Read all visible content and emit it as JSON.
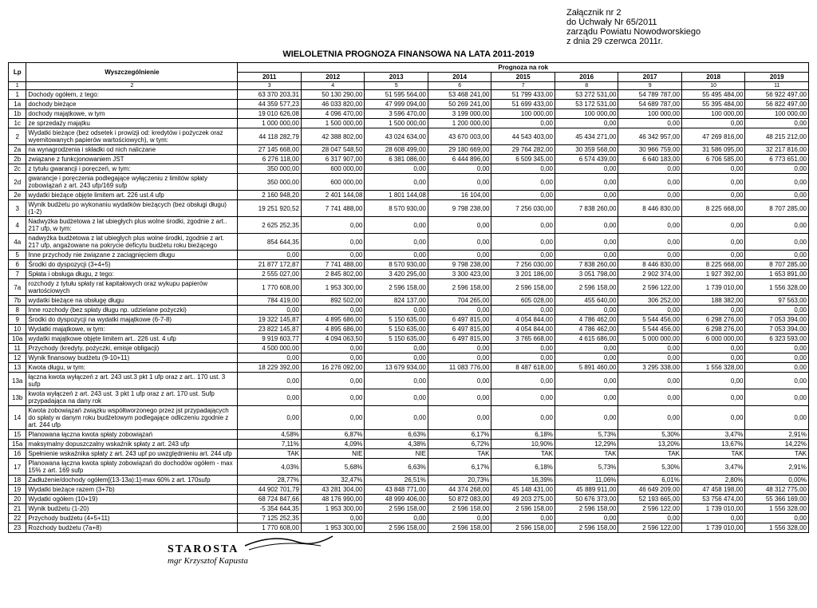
{
  "header": {
    "line1": "Załącznik nr 2",
    "line2": "do Uchwały Nr 65/2011",
    "line3": "zarządu Powiatu Nowodworskiego",
    "line4": "z dnia 29 czerwca 2011r."
  },
  "title": "WIELOLETNIA PROGNOZA FINANSOWA NA LATA 2011-2019",
  "col_headers": {
    "lp": "Lp",
    "desc": "Wyszczególnienie",
    "group": "Prognoza na rok",
    "years": [
      "2011",
      "2012",
      "2013",
      "2014",
      "2015",
      "2016",
      "2017",
      "2018",
      "2019"
    ],
    "nums": [
      "1",
      "2",
      "3",
      "4",
      "5",
      "6",
      "7",
      "8",
      "9",
      "10",
      "11"
    ]
  },
  "rows": [
    {
      "lp": "1",
      "desc": "Dochody ogółem, z tego:",
      "v": [
        "63 370 203,31",
        "50 130 290,00",
        "51 595 564,00",
        "53 468 241,00",
        "51 799 433,00",
        "53 272 531,00",
        "54 789 787,00",
        "55 495 484,00",
        "56 922 497,00"
      ]
    },
    {
      "lp": "1a",
      "desc": "dochody bieżące",
      "v": [
        "44 359 577,23",
        "46 033 820,00",
        "47 999 094,00",
        "50 269 241,00",
        "51 699 433,00",
        "53 172 531,00",
        "54 689 787,00",
        "55 395 484,00",
        "56 822 497,00"
      ]
    },
    {
      "lp": "1b",
      "desc": "dochody majątkowe, w tym",
      "v": [
        "19 010 626,08",
        "4 096 470,00",
        "3 596 470,00",
        "3 199 000,00",
        "100 000,00",
        "100 000,00",
        "100 000,00",
        "100 000,00",
        "100 000,00"
      ]
    },
    {
      "lp": "1c",
      "desc": "ze sprzedaży majątku",
      "v": [
        "1 000 000,00",
        "1 500 000,00",
        "1 500 000,00",
        "1 200 000,00",
        "0,00",
        "0,00",
        "0,00",
        "0,00",
        "0,00"
      ]
    },
    {
      "lp": "2",
      "desc": "Wydatki bieżące (bez odsetek i prowizji od: kredytów i pożyczek oraz wyemitowanych papierów wartościowych), w tym:",
      "v": [
        "44 118 282,79",
        "42 388 802,00",
        "43 024 634,00",
        "43 670 003,00",
        "44 543 403,00",
        "45 434 271,00",
        "46 342 957,00",
        "47 269 816,00",
        "48 215 212,00"
      ]
    },
    {
      "lp": "2a",
      "desc": "na wynagrodzenia i składki od nich naliczane",
      "v": [
        "27 145 668,00",
        "28 047 548,50",
        "28 608 499,00",
        "29 180 669,00",
        "29 764 282,00",
        "30 359 568,00",
        "30 966 759,00",
        "31 586 095,00",
        "32 217 816,00"
      ]
    },
    {
      "lp": "2b",
      "desc": "związane z funkcjonowaniem JST",
      "v": [
        "6 276 118,00",
        "6 317 907,00",
        "6 381 086,00",
        "6 444 896,00",
        "6 509 345,00",
        "6 574 439,00",
        "6 640 183,00",
        "6 706 585,00",
        "6 773 651,00"
      ]
    },
    {
      "lp": "2c",
      "desc": "z tytułu gwarancji i poręczeń, w tym:",
      "v": [
        "350 000,00",
        "600 000,00",
        "0,00",
        "0,00",
        "0,00",
        "0,00",
        "0,00",
        "0,00",
        "0,00"
      ]
    },
    {
      "lp": "2d",
      "desc": "gwarancje i poręczenia podlegające wyłączeniu z limitów spłaty zobowiązań z art. 243 ufp/169 sufp",
      "v": [
        "350 000,00",
        "600 000,00",
        "0,00",
        "0,00",
        "0,00",
        "0,00",
        "0,00",
        "0,00",
        "0,00"
      ]
    },
    {
      "lp": "2e",
      "desc": "wydatki bieżące objęte limitem art. 226 ust.4 ufp",
      "v": [
        "2 160 948,20",
        "2 401 144,08",
        "1 801 144,08",
        "16 104,00",
        "0,00",
        "0,00",
        "0,00",
        "0,00",
        "0,00"
      ]
    },
    {
      "lp": "3",
      "desc": "Wynik budżetu po wykonaniu wydatków bieżących (bez obsługi długu) (1-2)",
      "v": [
        "19 251 920,52",
        "7 741 488,00",
        "8 570 930,00",
        "9 798 238,00",
        "7 256 030,00",
        "7 838 260,00",
        "8 446 830,00",
        "8 225 668,00",
        "8 707 285,00"
      ]
    },
    {
      "lp": "4",
      "desc": "Nadwyżka budżetowa z lat ubiegłych plus wolne środki, zgodnie z art.. 217 ufp, w tym:",
      "v": [
        "2 625 252,35",
        "0,00",
        "0,00",
        "0,00",
        "0,00",
        "0,00",
        "0,00",
        "0,00",
        "0,00"
      ]
    },
    {
      "lp": "4a",
      "desc": "nadwyżka budżetowa z lat ubiegłych plus wolne środki, zgodnie z art. 217 ufp, angażowane na pokrycie deficytu budżetu roku bieżącego",
      "v": [
        "854 644,35",
        "0,00",
        "0,00",
        "0,00",
        "0,00",
        "0,00",
        "0,00",
        "0,00",
        "0,00"
      ]
    },
    {
      "lp": "5",
      "desc": "Inne przychody nie związane z zaciągnięciem długu",
      "v": [
        "0,00",
        "0,00",
        "0,00",
        "0,00",
        "0,00",
        "0,00",
        "0,00",
        "0,00",
        "0,00"
      ]
    },
    {
      "lp": "6",
      "desc": "Środki do dyspozycji (3+4+5)",
      "v": [
        "21 877 172,87",
        "7 741 488,00",
        "8 570 930,00",
        "9 798 238,00",
        "7 256 030,00",
        "7 838 260,00",
        "8 446 830,00",
        "8 225 668,00",
        "8 707 285,00"
      ]
    },
    {
      "lp": "7",
      "desc": "Spłata i obsługa długu, z tego:",
      "v": [
        "2 555 027,00",
        "2 845 802,00",
        "3 420 295,00",
        "3 300 423,00",
        "3 201 186,00",
        "3 051 798,00",
        "2 902 374,00",
        "1 927 392,00",
        "1 653 891,00"
      ]
    },
    {
      "lp": "7a",
      "desc": "rozchody z tytułu spłaty rat kapitałowych oraz wykupu papierów wartościowych",
      "v": [
        "1 770 608,00",
        "1 953 300,00",
        "2 596 158,00",
        "2 596 158,00",
        "2 596 158,00",
        "2 596 158,00",
        "2 596 122,00",
        "1 739 010,00",
        "1 556 328,00"
      ]
    },
    {
      "lp": "7b",
      "desc": "wydatki bieżące na obsługę długu",
      "v": [
        "784 419,00",
        "892 502,00",
        "824 137,00",
        "704 265,00",
        "605 028,00",
        "455 640,00",
        "306 252,00",
        "188 382,00",
        "97 563,00"
      ]
    },
    {
      "lp": "8",
      "desc": "Inne rozchody (bez spłaty długu np. udzielane pożyczki)",
      "v": [
        "0,00",
        "0,00",
        "0,00",
        "0,00",
        "0,00",
        "0,00",
        "0,00",
        "0,00",
        "0,00"
      ]
    },
    {
      "lp": "9",
      "desc": "Środki do dyspozycji na wydatki majątkowe (6-7-8)",
      "v": [
        "19 322 145,87",
        "4 895 686,00",
        "5 150 635,00",
        "6 497 815,00",
        "4 054 844,00",
        "4 786 462,00",
        "5 544 456,00",
        "6 298 276,00",
        "7 053 394,00"
      ]
    },
    {
      "lp": "10",
      "desc": "Wydatki majątkowe, w tym:",
      "v": [
        "23 822 145,87",
        "4 895 686,00",
        "5 150 635,00",
        "6 497 815,00",
        "4 054 844,00",
        "4 786 462,00",
        "5 544 456,00",
        "6 298 276,00",
        "7 053 394,00"
      ]
    },
    {
      "lp": "10a",
      "desc": "wydatki majątkowe objęte limitem art.. 226 ust. 4 ufp",
      "v": [
        "9 919 603,77",
        "4 094 063,50",
        "5 150 635,00",
        "6 497 815,00",
        "3 765 668,00",
        "4 615 686,00",
        "5 000 000,00",
        "6 000 000,00",
        "6 323 593,00"
      ]
    },
    {
      "lp": "11",
      "desc": "Przychody (kredyty, pożyczki, emisje obligacji)",
      "v": [
        "4 500 000,00",
        "0,00",
        "0,00",
        "0,00",
        "0,00",
        "0,00",
        "0,00",
        "0,00",
        "0,00"
      ]
    },
    {
      "lp": "12",
      "desc": "Wynik finansowy budżetu (9-10+11)",
      "v": [
        "0,00",
        "0,00",
        "0,00",
        "0,00",
        "0,00",
        "0,00",
        "0,00",
        "0,00",
        "0,00"
      ]
    },
    {
      "lp": "13",
      "desc": "Kwota długu, w tym:",
      "v": [
        "18 229 392,00",
        "16 276 092,00",
        "13 679 934,00",
        "11 083 776,00",
        "8 487 618,00",
        "5 891 460,00",
        "3 295 338,00",
        "1 556 328,00",
        "0,00"
      ]
    },
    {
      "lp": "13a",
      "desc": "łączna kwota wyłączeń z art. 243 ust.3 pkt 1 ufp oraz z art.. 170 ust. 3 sufp",
      "v": [
        "0,00",
        "0,00",
        "0,00",
        "0,00",
        "0,00",
        "0,00",
        "0,00",
        "0,00",
        "0,00"
      ]
    },
    {
      "lp": "13b",
      "desc": "kwota wyłączeń z art. 243 ust. 3 pkt 1 ufp oraz z art. 170 ust. Sufp przypadająca na dany rok",
      "v": [
        "0,00",
        "0,00",
        "0,00",
        "0,00",
        "0,00",
        "0,00",
        "0,00",
        "0,00",
        "0,00"
      ]
    },
    {
      "lp": "14",
      "desc": "Kwota zobowiązań związku współtworzonego przez jst przypadających do spłaty w danym roku budżetowym podlegające odliczeniu zgodnie z art. 244 ufp",
      "v": [
        "0,00",
        "0,00",
        "0,00",
        "0,00",
        "0,00",
        "0,00",
        "0,00",
        "0,00",
        "0,00"
      ]
    },
    {
      "lp": "15",
      "desc": "Planowana łączna kwota spłaty zobowiązań",
      "v": [
        "4,58%",
        "6,87%",
        "6,63%",
        "6,17%",
        "6,18%",
        "5,73%",
        "5,30%",
        "3,47%",
        "2,91%"
      ]
    },
    {
      "lp": "15a",
      "desc": "maksymalny dopuszczalny wskaźnik spłaty z art. 243 ufp",
      "v": [
        "7,11%",
        "4,09%",
        "4,38%",
        "6,72%",
        "10,90%",
        "12,29%",
        "13,20%",
        "13,67%",
        "14,22%"
      ]
    },
    {
      "lp": "16",
      "desc": "Spełnienie wskaźnika spłaty z art. 243 upf po uwzględnieniu art. 244 ufp",
      "v": [
        "TAK",
        "NIE",
        "NIE",
        "TAK",
        "TAK",
        "TAK",
        "TAK",
        "TAK",
        "TAK"
      ]
    },
    {
      "lp": "17",
      "desc": "Planowana łączna kwota spłaty zobowiązań do dochodów ogółem - max 15% z art. 169 sufp",
      "v": [
        "4,03%",
        "5,68%",
        "6,63%",
        "6,17%",
        "6,18%",
        "5,73%",
        "5,30%",
        "3,47%",
        "2,91%"
      ]
    },
    {
      "lp": "18",
      "desc": "Zadłużenie/dochody ogółem[(13-13a):1]-max 60% z art. 170sufp",
      "v": [
        "28,77%",
        "32,47%",
        "26,51%",
        "20,73%",
        "16,39%",
        "11,06%",
        "6,01%",
        "2,80%",
        "0,00%"
      ]
    },
    {
      "lp": "19",
      "desc": "Wydatki bieżące razem (3+7b)",
      "v": [
        "44 902 701,79",
        "43 281 304,00",
        "43 848 771,00",
        "44 374 268,00",
        "45 148 431,00",
        "45 889 911,00",
        "46 649 209,00",
        "47 458 198,00",
        "48 312 775,00"
      ]
    },
    {
      "lp": "20",
      "desc": "Wydatki ogółem (10+19)",
      "v": [
        "68 724 847,66",
        "48 176 990,00",
        "48 999 406,00",
        "50 872 083,00",
        "49 203 275,00",
        "50 676 373,00",
        "52 193 665,00",
        "53 756 474,00",
        "55 366 169,00"
      ]
    },
    {
      "lp": "21",
      "desc": "Wynik budżetu (1-20)",
      "v": [
        "-5 354 644,35",
        "1 953 300,00",
        "2 596 158,00",
        "2 596 158,00",
        "2 596 158,00",
        "2 596 158,00",
        "2 596 122,00",
        "1 739 010,00",
        "1 556 328,00"
      ]
    },
    {
      "lp": "22",
      "desc": "Przychody budżetu (4+5+11)",
      "v": [
        "7 125 252,35",
        "0,00",
        "0,00",
        "0,00",
        "0,00",
        "0,00",
        "0,00",
        "0,00",
        "0,00"
      ]
    },
    {
      "lp": "23",
      "desc": "Rozchody budżetu (7a+8)",
      "v": [
        "1 770 608,00",
        "1 953 300,00",
        "2 596 158,00",
        "2 596 158,00",
        "2 596 158,00",
        "2 596 158,00",
        "2 596 122,00",
        "1 739 010,00",
        "1 556 328,00"
      ]
    }
  ],
  "signature": {
    "title": "STAROSTA",
    "name": "mgr Krzysztof Kapusta"
  }
}
